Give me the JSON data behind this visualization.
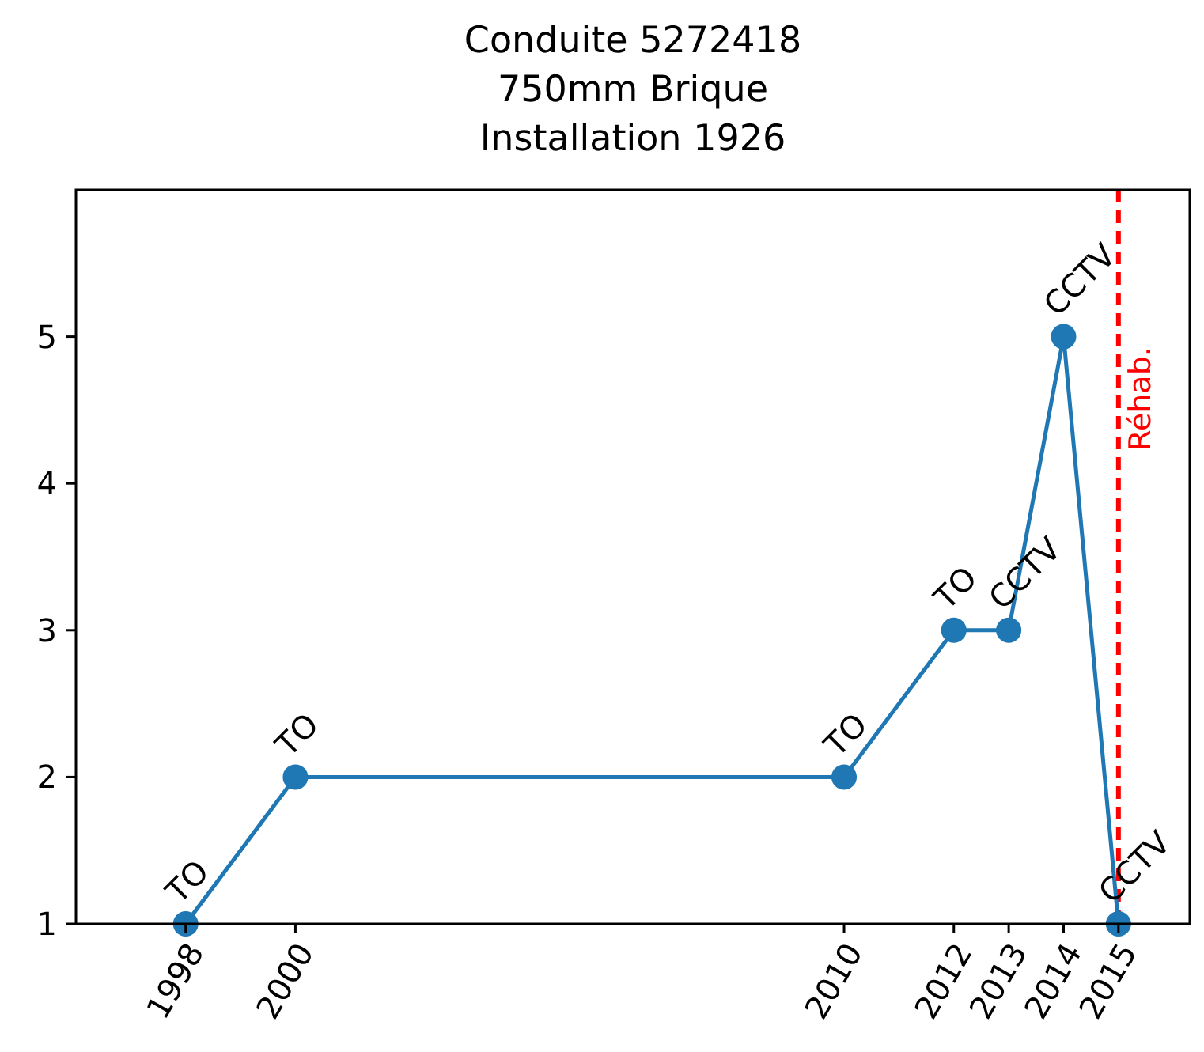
{
  "chart_data": {
    "type": "line",
    "title": "Conduite 5272418\n750mm Brique\nInstallation 1926",
    "x": [
      1998,
      2000,
      2010,
      2012,
      2013,
      2014,
      2015
    ],
    "series": [
      {
        "color": "#1f77b4",
        "values": [
          1,
          2,
          2,
          3,
          3,
          5,
          1
        ]
      }
    ],
    "xlim": [
      1996,
      2016.3
    ],
    "xticks": [
      1998,
      2000,
      2010,
      2012,
      2013,
      2014,
      2015
    ],
    "ylim": [
      1,
      6
    ],
    "yticks": [
      1,
      2,
      3,
      4,
      5
    ],
    "marker": "circle",
    "line_style": "solid",
    "grid": false,
    "ref_lines": [
      {
        "axis": "x",
        "value": 2015,
        "label": "Réhab.",
        "color": "#ff0000",
        "line_style": "dashed"
      }
    ],
    "annotations": [
      {
        "text": "TO",
        "x": 1998,
        "y": 1
      },
      {
        "text": "TO",
        "x": 2000,
        "y": 2
      },
      {
        "text": "TO",
        "x": 2010,
        "y": 2
      },
      {
        "text": "TO",
        "x": 2012,
        "y": 3
      },
      {
        "text": "CCTV",
        "x": 2013,
        "y": 3
      },
      {
        "text": "CCTV",
        "x": 2014,
        "y": 5
      },
      {
        "text": "CCTV",
        "x": 2015,
        "y": 1
      }
    ]
  }
}
